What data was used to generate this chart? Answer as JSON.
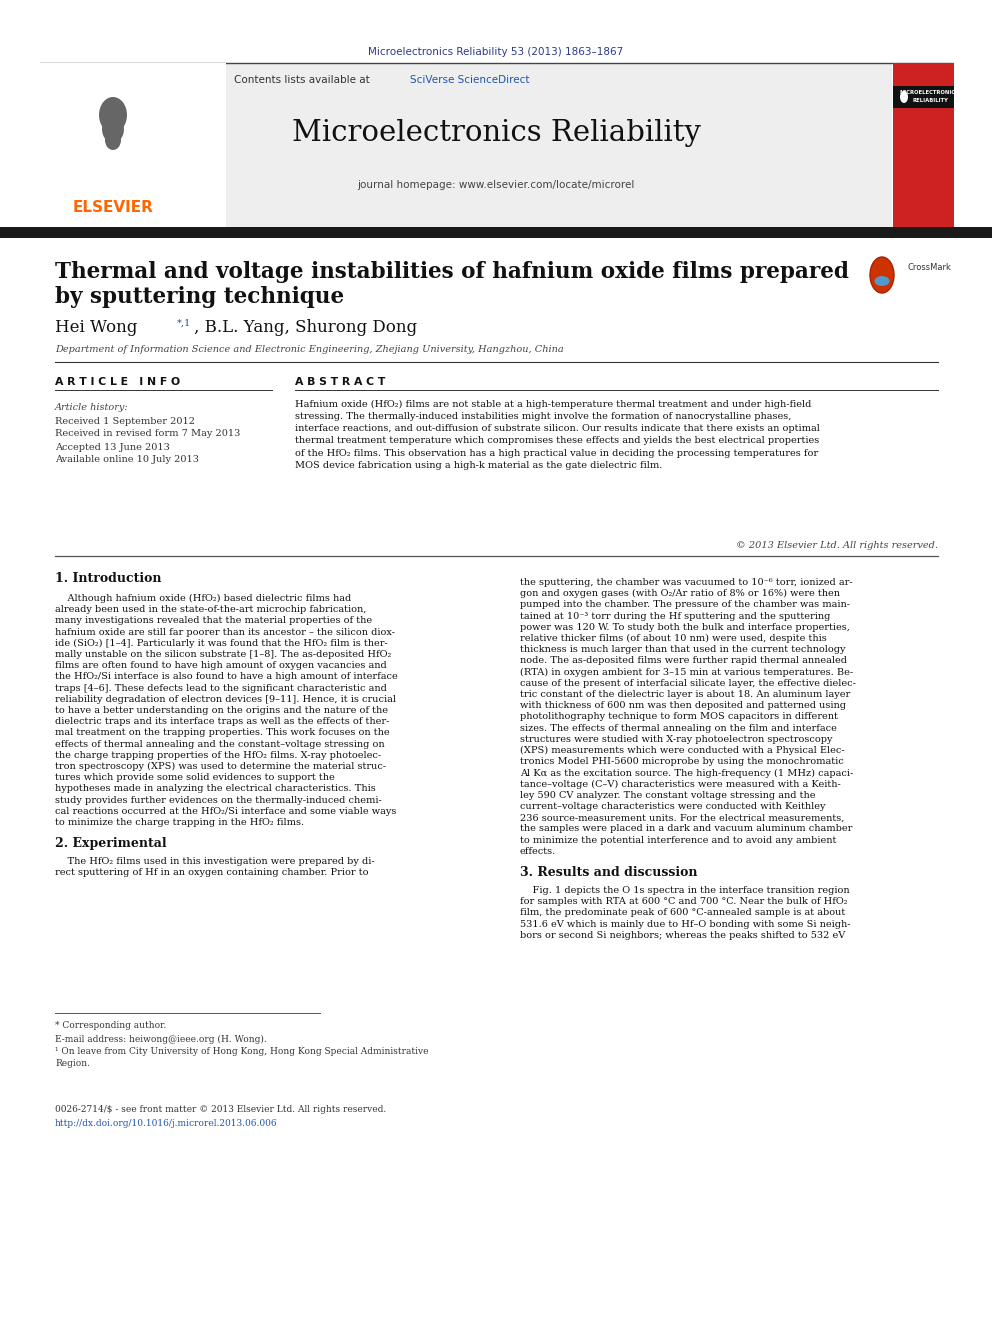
{
  "journal_ref": "Microelectronics Reliability 53 (2013) 1863–1867",
  "journal_ref_color": "#2b3a8a",
  "contents_line": "Contents lists available at ",
  "sciverse_text": "SciVerse ScienceDirect",
  "sciverse_color": "#2b6cb0",
  "journal_name": "Microelectronics Reliability",
  "journal_homepage": "journal homepage: www.elsevier.com/locate/microrel",
  "elsevier_color": "#ff6600",
  "paper_title_line1": "Thermal and voltage instabilities of hafnium oxide films prepared",
  "paper_title_line2": "by sputtering technique",
  "authors": "Hei Wong",
  "authors_superscript": "*,1",
  "authors_rest": ", B.L. Yang, Shurong Dong",
  "affiliation": "Department of Information Science and Electronic Engineering, Zhejiang University, Hangzhou, China",
  "article_info_header": "A R T I C L E   I N F O",
  "abstract_header": "A B S T R A C T",
  "article_history_label": "Article history:",
  "received1": "Received 1 September 2012",
  "received2": "Received in revised form 7 May 2013",
  "accepted": "Accepted 13 June 2013",
  "available": "Available online 10 July 2013",
  "abstract_lines": [
    "Hafnium oxide (HfO₂) films are not stable at a high-temperature thermal treatment and under high-field",
    "stressing. The thermally-induced instabilities might involve the formation of nanocrystalline phases,",
    "interface reactions, and out-diffusion of substrate silicon. Our results indicate that there exists an optimal",
    "thermal treatment temperature which compromises these effects and yields the best electrical properties",
    "of the HfO₂ films. This observation has a high practical value in deciding the processing temperatures for",
    "MOS device fabrication using a high-k material as the gate dielectric film."
  ],
  "copyright": "© 2013 Elsevier Ltd. All rights reserved.",
  "section1_title": "1. Introduction",
  "intro_col1_lines": [
    "    Although hafnium oxide (HfO₂) based dielectric films had",
    "already been used in the state-of-the-art microchip fabrication,",
    "many investigations revealed that the material properties of the",
    "hafnium oxide are still far poorer than its ancestor – the silicon diox-",
    "ide (SiO₂) [1–4]. Particularly it was found that the HfO₂ film is ther-",
    "mally unstable on the silicon substrate [1–8]. The as-deposited HfO₂",
    "films are often found to have high amount of oxygen vacancies and",
    "the HfO₂/Si interface is also found to have a high amount of interface",
    "traps [4–6]. These defects lead to the significant characteristic and",
    "reliability degradation of electron devices [9–11]. Hence, it is crucial",
    "to have a better understanding on the origins and the nature of the",
    "dielectric traps and its interface traps as well as the effects of ther-",
    "mal treatment on the trapping properties. This work focuses on the",
    "effects of thermal annealing and the constant–voltage stressing on",
    "the charge trapping properties of the HfO₂ films. X-ray photoelec-",
    "tron spectroscopy (XPS) was used to determine the material struc-",
    "tures which provide some solid evidences to support the",
    "hypotheses made in analyzing the electrical characteristics. This",
    "study provides further evidences on the thermally-induced chemi-",
    "cal reactions occurred at the HfO₂/Si interface and some viable ways",
    "to minimize the charge trapping in the HfO₂ films."
  ],
  "section2_title": "2. Experimental",
  "experimental_lines": [
    "    The HfO₂ films used in this investigation were prepared by di-",
    "rect sputtering of Hf in an oxygen containing chamber. Prior to"
  ],
  "intro_col2_lines": [
    "the sputtering, the chamber was vacuumed to 10⁻⁶ torr, ionized ar-",
    "gon and oxygen gases (with O₂/Ar ratio of 8% or 16%) were then",
    "pumped into the chamber. The pressure of the chamber was main-",
    "tained at 10⁻³ torr during the Hf sputtering and the sputtering",
    "power was 120 W. To study both the bulk and interface properties,",
    "relative thicker films (of about 10 nm) were used, despite this",
    "thickness is much larger than that used in the current technology",
    "node. The as-deposited films were further rapid thermal annealed",
    "(RTA) in oxygen ambient for 3–15 min at various temperatures. Be-",
    "cause of the present of interfacial silicate layer, the effective dielec-",
    "tric constant of the dielectric layer is about 18. An aluminum layer",
    "with thickness of 600 nm was then deposited and patterned using",
    "photolithography technique to form MOS capacitors in different",
    "sizes. The effects of thermal annealing on the film and interface",
    "structures were studied with X-ray photoelectron spectroscopy",
    "(XPS) measurements which were conducted with a Physical Elec-",
    "tronics Model PHI-5600 microprobe by using the monochromatic",
    "Al Kα as the excitation source. The high-frequency (1 MHz) capaci-",
    "tance–voltage (C–V) characteristics were measured with a Keith-",
    "ley 590 CV analyzer. The constant voltage stressing and the",
    "current–voltage characteristics were conducted with Keithley",
    "236 source-measurement units. For the electrical measurements,",
    "the samples were placed in a dark and vacuum aluminum chamber",
    "to minimize the potential interference and to avoid any ambient",
    "effects."
  ],
  "section3_title": "3. Results and discussion",
  "results_col2_lines": [
    "    Fig. 1 depicts the O 1s spectra in the interface transition region",
    "for samples with RTA at 600 °C and 700 °C. Near the bulk of HfO₂",
    "film, the predominate peak of 600 °C-annealed sample is at about",
    "531.6 eV which is mainly due to Hf–O bonding with some Si neigh-",
    "bors or second Si neighbors; whereas the peaks shifted to 532 eV"
  ],
  "footnote_star": "* Corresponding author.",
  "footnote_email": "E-mail address: heiwong@ieee.org (H. Wong).",
  "footnote_1a": "¹ On leave from City University of Hong Kong, Hong Kong Special Administrative",
  "footnote_1b": "Region.",
  "footer_issn": "0026-2714/$ - see front matter © 2013 Elsevier Ltd. All rights reserved.",
  "footer_doi": "http://dx.doi.org/10.1016/j.microrel.2013.06.006",
  "bg_color": "#ffffff",
  "text_color": "#000000",
  "black_bar_color": "#1a1a1a",
  "link_color": "#2255aa",
  "sciverse_link_color": "#2255aa"
}
